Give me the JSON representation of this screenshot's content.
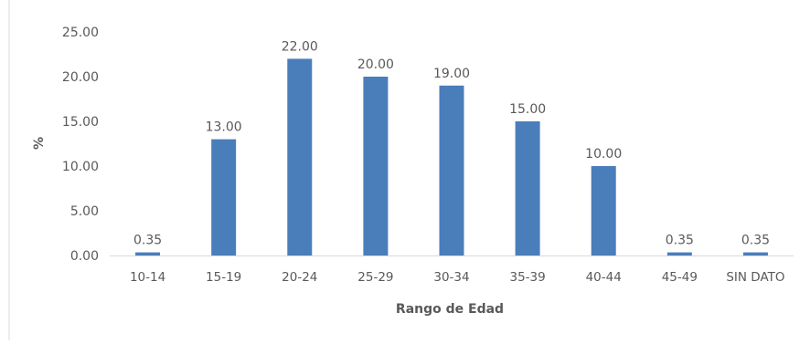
{
  "colors": {
    "bar": "#4a7ebb",
    "axis": "#d9d9d9",
    "text": "#595959"
  },
  "chart_data": {
    "type": "bar",
    "title": "",
    "xlabel": "Rango de Edad",
    "ylabel": "%",
    "ylim": [
      0,
      25
    ],
    "yticks": [
      "0.00",
      "5.00",
      "10.00",
      "15.00",
      "20.00",
      "25.00"
    ],
    "categories": [
      "10-14",
      "15-19",
      "20-24",
      "25-29",
      "30-34",
      "35-39",
      "40-44",
      "45-49",
      "SIN DATO"
    ],
    "values": [
      0.35,
      13.0,
      22.0,
      20.0,
      19.0,
      15.0,
      10.0,
      0.35,
      0.35
    ],
    "data_labels": [
      "0.35",
      "13.00",
      "22.00",
      "20.00",
      "19.00",
      "15.00",
      "10.00",
      "0.35",
      "0.35"
    ],
    "grid": false,
    "legend": "none"
  }
}
